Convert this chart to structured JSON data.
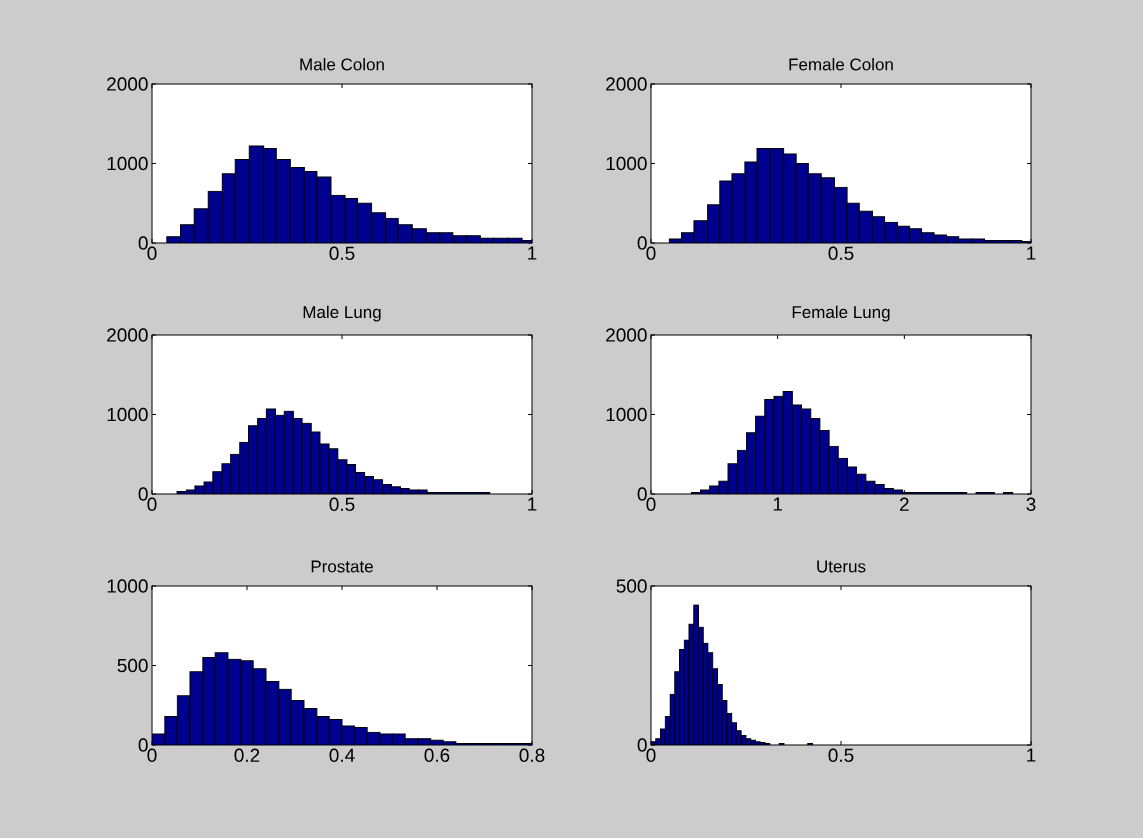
{
  "chart_data": [
    {
      "type": "histogram",
      "title": "Male Colon",
      "color": "#00008f",
      "xlim": [
        0,
        1
      ],
      "ylim": [
        0,
        2000
      ],
      "xticks": [
        0,
        0.5,
        1
      ],
      "yticks": [
        0,
        1000,
        2000
      ],
      "bins": [
        0.039,
        0.075,
        0.111,
        0.148,
        0.185,
        0.219,
        0.256,
        0.294,
        0.327,
        0.364,
        0.401,
        0.434,
        0.471,
        0.508,
        0.541,
        0.578,
        0.615,
        0.648,
        0.685,
        0.722,
        0.757,
        0.792,
        0.829,
        0.864,
        0.899,
        0.936,
        0.974,
        1.0
      ],
      "values": [
        80,
        230,
        430,
        650,
        870,
        1050,
        1220,
        1190,
        1050,
        950,
        900,
        830,
        600,
        560,
        500,
        380,
        310,
        230,
        180,
        130,
        130,
        90,
        90,
        60,
        60,
        60,
        30
      ]
    },
    {
      "type": "histogram",
      "title": "Female Colon",
      "color": "#00008f",
      "xlim": [
        0,
        1
      ],
      "ylim": [
        0,
        2000
      ],
      "xticks": [
        0,
        0.5,
        1
      ],
      "yticks": [
        0,
        1000,
        2000
      ],
      "bins": [
        0.048,
        0.08,
        0.113,
        0.149,
        0.181,
        0.213,
        0.247,
        0.279,
        0.314,
        0.349,
        0.382,
        0.414,
        0.448,
        0.483,
        0.516,
        0.548,
        0.583,
        0.615,
        0.649,
        0.681,
        0.712,
        0.745,
        0.778,
        0.81,
        0.845,
        0.878,
        0.911,
        0.946,
        0.976,
        1.0
      ],
      "values": [
        50,
        130,
        280,
        480,
        780,
        870,
        1020,
        1190,
        1190,
        1120,
        1000,
        870,
        820,
        700,
        500,
        400,
        330,
        260,
        210,
        180,
        130,
        100,
        80,
        50,
        50,
        30,
        30,
        30,
        20
      ]
    },
    {
      "type": "histogram",
      "title": "Male Lung",
      "color": "#00008f",
      "xlim": [
        0,
        1
      ],
      "ylim": [
        0,
        2000
      ],
      "xticks": [
        0,
        0.5,
        1
      ],
      "yticks": [
        0,
        1000,
        2000
      ],
      "bins": [
        0.066,
        0.09,
        0.113,
        0.137,
        0.16,
        0.184,
        0.207,
        0.231,
        0.254,
        0.278,
        0.301,
        0.325,
        0.348,
        0.372,
        0.395,
        0.419,
        0.442,
        0.466,
        0.489,
        0.513,
        0.536,
        0.56,
        0.583,
        0.607,
        0.63,
        0.654,
        0.677,
        0.701,
        0.724,
        0.748,
        0.771,
        0.795,
        0.818,
        0.842,
        0.865,
        0.889
      ],
      "values": [
        30,
        50,
        100,
        150,
        280,
        380,
        500,
        650,
        860,
        950,
        1070,
        990,
        1040,
        950,
        890,
        780,
        630,
        570,
        430,
        370,
        270,
        220,
        180,
        120,
        90,
        70,
        50,
        50,
        20,
        20,
        20,
        20,
        20,
        20,
        20
      ]
    },
    {
      "type": "histogram",
      "title": "Female Lung",
      "color": "#00008f",
      "xlim": [
        0,
        3
      ],
      "ylim": [
        0,
        2000
      ],
      "xticks": [
        0,
        1,
        2,
        3
      ],
      "yticks": [
        0,
        1000,
        2000
      ],
      "bins": [
        0.318,
        0.391,
        0.463,
        0.536,
        0.608,
        0.681,
        0.753,
        0.826,
        0.898,
        0.971,
        1.043,
        1.116,
        1.188,
        1.261,
        1.333,
        1.406,
        1.478,
        1.551,
        1.623,
        1.696,
        1.768,
        1.841,
        1.913,
        1.986,
        2.058,
        2.131,
        2.203,
        2.276,
        2.348,
        2.421,
        2.493,
        2.566,
        2.638,
        2.711,
        2.783,
        2.856
      ],
      "values": [
        20,
        50,
        100,
        160,
        380,
        550,
        770,
        980,
        1190,
        1230,
        1290,
        1120,
        1070,
        950,
        800,
        600,
        450,
        340,
        250,
        160,
        120,
        70,
        50,
        20,
        20,
        20,
        20,
        20,
        20,
        20,
        null,
        20,
        20,
        null,
        20
      ]
    },
    {
      "type": "histogram",
      "title": "Prostate",
      "color": "#00008f",
      "xlim": [
        0,
        0.8
      ],
      "ylim": [
        0,
        1000
      ],
      "xticks": [
        0,
        0.2,
        0.4,
        0.6,
        0.8
      ],
      "yticks": [
        0,
        500,
        1000
      ],
      "bins": [
        0,
        0.027,
        0.053,
        0.08,
        0.107,
        0.133,
        0.16,
        0.187,
        0.213,
        0.24,
        0.267,
        0.293,
        0.32,
        0.347,
        0.373,
        0.4,
        0.427,
        0.453,
        0.48,
        0.507,
        0.533,
        0.56,
        0.587,
        0.613,
        0.64,
        0.667,
        0.693,
        0.72,
        0.747,
        0.773,
        0.8
      ],
      "values": [
        70,
        180,
        310,
        460,
        550,
        580,
        540,
        530,
        480,
        400,
        350,
        280,
        230,
        180,
        160,
        120,
        110,
        80,
        70,
        70,
        40,
        40,
        30,
        20,
        10,
        10,
        10,
        10,
        10,
        10
      ]
    },
    {
      "type": "histogram",
      "title": "Uterus",
      "color": "#00008f",
      "xlim": [
        0,
        1
      ],
      "ylim": [
        0,
        500
      ],
      "xticks": [
        0,
        0.5,
        1
      ],
      "yticks": [
        0,
        500
      ],
      "bins": [
        0,
        0.0125,
        0.025,
        0.0375,
        0.05,
        0.0625,
        0.075,
        0.0875,
        0.1,
        0.1125,
        0.125,
        0.1375,
        0.15,
        0.1625,
        0.175,
        0.1875,
        0.2,
        0.2125,
        0.225,
        0.2375,
        0.25,
        0.2625,
        0.275,
        0.2875,
        0.3,
        0.3125,
        0.3375,
        0.35,
        0.4125,
        0.425
      ],
      "values": [
        10,
        20,
        50,
        90,
        160,
        230,
        300,
        330,
        380,
        440,
        370,
        320,
        290,
        240,
        190,
        140,
        100,
        70,
        45,
        30,
        20,
        15,
        10,
        8,
        5,
        null,
        5,
        null,
        5
      ]
    }
  ]
}
